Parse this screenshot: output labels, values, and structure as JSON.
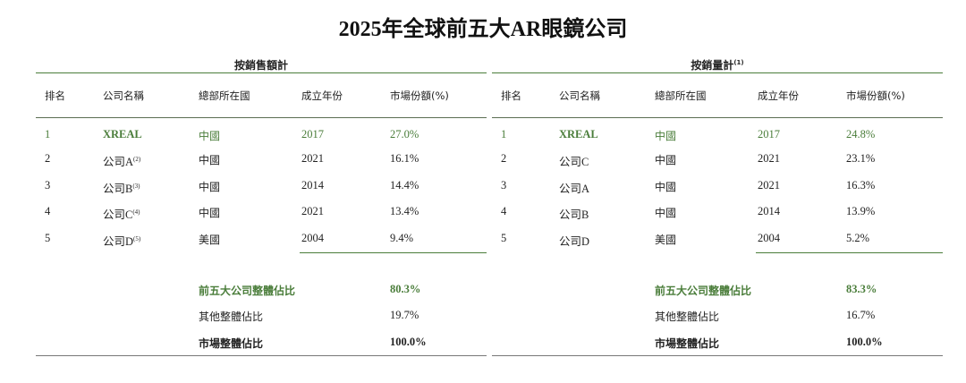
{
  "title": "2025年全球前五大AR眼鏡公司",
  "accent_color": "#4a7d3a",
  "headers": [
    "排名",
    "公司名稱",
    "總部所在國",
    "成立年份",
    "市場份額(%)"
  ],
  "tables": [
    {
      "group": "按銷售額計",
      "group_note": "",
      "rows": [
        {
          "rank": "1",
          "name": "XREAL",
          "note": "",
          "hq": "中國",
          "year": "2017",
          "share": "27.0%"
        },
        {
          "rank": "2",
          "name": "公司A",
          "note": "(2)",
          "hq": "中國",
          "year": "2021",
          "share": "16.1%"
        },
        {
          "rank": "3",
          "name": "公司B",
          "note": "(3)",
          "hq": "中國",
          "year": "2014",
          "share": "14.4%"
        },
        {
          "rank": "4",
          "name": "公司C",
          "note": "(4)",
          "hq": "中國",
          "year": "2021",
          "share": "13.4%"
        },
        {
          "rank": "5",
          "name": "公司D",
          "note": "(5)",
          "hq": "美國",
          "year": "2004",
          "share": "9.4%"
        }
      ],
      "summary": [
        {
          "label": "前五大公司整體佔比",
          "value": "80.3%"
        },
        {
          "label": "其他整體佔比",
          "value": "19.7%"
        },
        {
          "label": "市場整體佔比",
          "value": "100.0%"
        }
      ]
    },
    {
      "group": "按銷量計",
      "group_note": "(1)",
      "rows": [
        {
          "rank": "1",
          "name": "XREAL",
          "note": "",
          "hq": "中國",
          "year": "2017",
          "share": "24.8%"
        },
        {
          "rank": "2",
          "name": "公司C",
          "note": "",
          "hq": "中國",
          "year": "2021",
          "share": "23.1%"
        },
        {
          "rank": "3",
          "name": "公司A",
          "note": "",
          "hq": "中國",
          "year": "2021",
          "share": "16.3%"
        },
        {
          "rank": "4",
          "name": "公司B",
          "note": "",
          "hq": "中國",
          "year": "2014",
          "share": "13.9%"
        },
        {
          "rank": "5",
          "name": "公司D",
          "note": "",
          "hq": "美國",
          "year": "2004",
          "share": "5.2%"
        }
      ],
      "summary": [
        {
          "label": "前五大公司整體佔比",
          "value": "83.3%"
        },
        {
          "label": "其他整體佔比",
          "value": "16.7%"
        },
        {
          "label": "市場整體佔比",
          "value": "100.0%"
        }
      ]
    }
  ]
}
